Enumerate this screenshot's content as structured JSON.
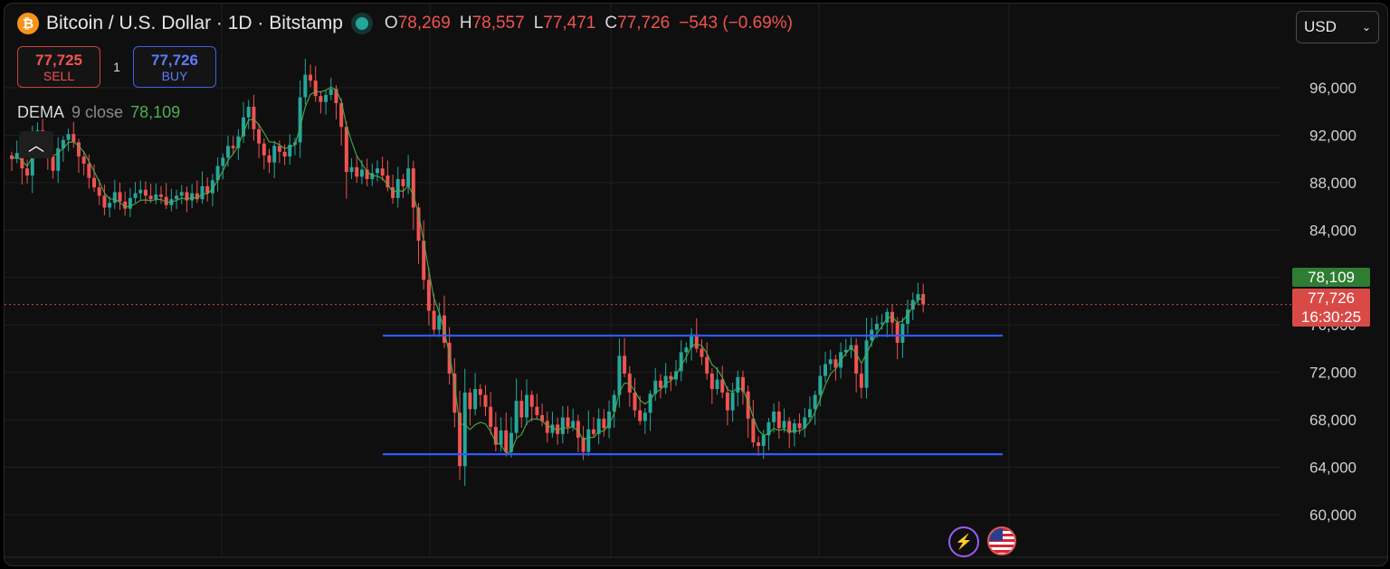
{
  "header": {
    "icon": "bitcoin-icon",
    "title": "Bitcoin / U.S. Dollar · 1D · Bitstamp",
    "ohlc": {
      "o_label": "O",
      "o": "78,269",
      "h_label": "H",
      "h": "78,557",
      "l_label": "L",
      "l": "77,471",
      "c_label": "C",
      "c": "77,726",
      "change": "−543 (−0.69%)"
    }
  },
  "trade": {
    "sell_price": "77,725",
    "sell_label": "SELL",
    "spread": "1",
    "buy_price": "77,726",
    "buy_label": "BUY"
  },
  "indicator": {
    "name": "DEMA",
    "params": "9 close",
    "value": "78,109"
  },
  "currency": {
    "value": "USD"
  },
  "price_tags": {
    "dema": "78,109",
    "last": "77,726",
    "countdown": "16:30:25"
  },
  "colors": {
    "up": "#26a69a",
    "down": "#ef5350",
    "dema": "#4caf50",
    "hline": "#2f5bff",
    "background": "#0f0f0f"
  },
  "chart_data": {
    "type": "candlestick",
    "y_ticks": [
      "96,000",
      "92,000",
      "88,000",
      "84,000",
      "80,000",
      "76,000",
      "72,000",
      "68,000",
      "64,000",
      "60,000"
    ],
    "ylim": [
      58000,
      100000
    ],
    "grid": true,
    "indicator_line": "DEMA 9 close",
    "horizontal_lines": [
      75100,
      65100
    ],
    "last_price": 77726,
    "closes": [
      90000,
      90500,
      89200,
      88600,
      91800,
      92400,
      91200,
      90200,
      89000,
      90900,
      91600,
      92100,
      91400,
      90200,
      89600,
      88400,
      87600,
      86900,
      85900,
      86300,
      87200,
      86400,
      85800,
      86700,
      87100,
      87400,
      86900,
      86600,
      87000,
      86800,
      86100,
      86600,
      86900,
      87200,
      86500,
      87100,
      86600,
      87700,
      87100,
      88200,
      89400,
      90100,
      91100,
      90900,
      91900,
      93500,
      94400,
      92500,
      91300,
      90300,
      89700,
      91100,
      90600,
      90200,
      91200,
      91400,
      95200,
      97100,
      96600,
      95300,
      94800,
      95400,
      95900,
      94700,
      92700,
      88900,
      89300,
      88500,
      89100,
      88300,
      88800,
      89200,
      88600,
      87600,
      86700,
      88300,
      87700,
      89200,
      85900,
      83100,
      79800,
      77200,
      75600,
      76800,
      74500,
      71900,
      68600,
      64100,
      70300,
      68900,
      70600,
      70100,
      69100,
      67400,
      65900,
      67100,
      65300,
      66900,
      69600,
      68200,
      70100,
      69100,
      68400,
      67900,
      66900,
      67600,
      66800,
      68200,
      67400,
      67900,
      66500,
      65300,
      67200,
      66800,
      68100,
      67300,
      68700,
      70100,
      73400,
      71900,
      70300,
      68800,
      67900,
      68600,
      70200,
      71300,
      70700,
      71700,
      71400,
      72100,
      73700,
      74100,
      75200,
      74000,
      73300,
      71900,
      70600,
      71400,
      70300,
      68800,
      70300,
      71600,
      70400,
      68100,
      66100,
      65800,
      66700,
      67800,
      68700,
      67300,
      67900,
      66900,
      67700,
      67300,
      68200,
      68900,
      70100,
      71700,
      72700,
      73100,
      72400,
      73700,
      73900,
      74300,
      71900,
      70700,
      74700,
      75600,
      76100,
      76200,
      77100,
      76200,
      74500,
      76100,
      77300,
      78100,
      78600,
      77726
    ]
  }
}
